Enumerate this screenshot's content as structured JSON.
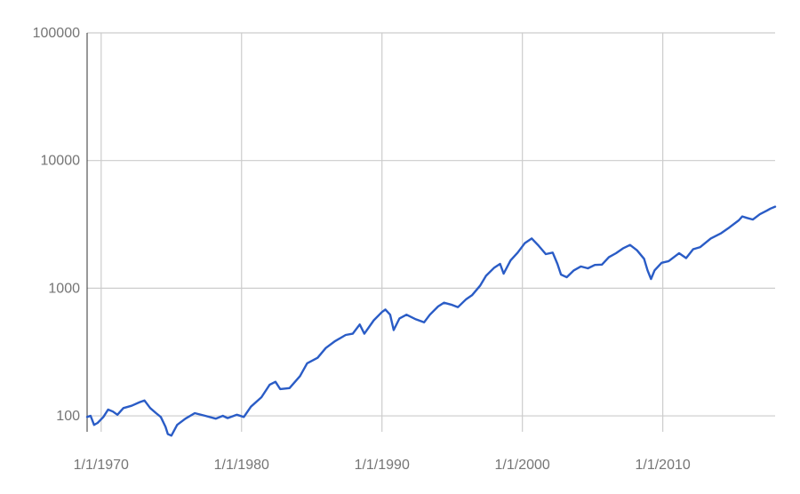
{
  "chart_data": {
    "type": "line",
    "title": "",
    "xlabel": "",
    "ylabel": "",
    "y_scale": "log",
    "ylim": [
      75,
      100000
    ],
    "xlim": [
      "1/1/1969",
      "1/1/2018"
    ],
    "grid": true,
    "legend": "none",
    "x_ticks": [
      {
        "label": "1/1/1970",
        "date": "1970-01-01"
      },
      {
        "label": "1/1/1980",
        "date": "1980-01-01"
      },
      {
        "label": "1/1/1990",
        "date": "1990-01-01"
      },
      {
        "label": "1/1/2000",
        "date": "2000-01-01"
      },
      {
        "label": "1/1/2010",
        "date": "2010-01-01"
      }
    ],
    "y_ticks": [
      {
        "label": "100",
        "value": 100
      },
      {
        "label": "1000",
        "value": 1000
      },
      {
        "label": "10000",
        "value": 10000
      },
      {
        "label": "100000",
        "value": 100000
      }
    ],
    "series": [
      {
        "color": "#2a5cc6",
        "points": [
          [
            "1969-01-01",
            98
          ],
          [
            "1969-04-01",
            100
          ],
          [
            "1969-07-01",
            85
          ],
          [
            "1969-10-01",
            88
          ],
          [
            "1970-03-01",
            98
          ],
          [
            "1970-07-01",
            112
          ],
          [
            "1970-11-01",
            108
          ],
          [
            "1971-03-01",
            102
          ],
          [
            "1971-08-01",
            115
          ],
          [
            "1972-03-01",
            120
          ],
          [
            "1972-10-01",
            128
          ],
          [
            "1973-02-01",
            132
          ],
          [
            "1973-07-01",
            115
          ],
          [
            "1973-12-01",
            105
          ],
          [
            "1974-04-01",
            98
          ],
          [
            "1974-08-01",
            82
          ],
          [
            "1974-10-01",
            72
          ],
          [
            "1975-01-01",
            70
          ],
          [
            "1975-06-01",
            85
          ],
          [
            "1976-01-01",
            95
          ],
          [
            "1976-09-01",
            105
          ],
          [
            "1977-06-01",
            100
          ],
          [
            "1978-03-01",
            95
          ],
          [
            "1978-09-01",
            100
          ],
          [
            "1979-01-01",
            96
          ],
          [
            "1979-09-01",
            102
          ],
          [
            "1980-03-01",
            98
          ],
          [
            "1980-09-01",
            118
          ],
          [
            "1981-06-01",
            140
          ],
          [
            "1982-01-01",
            175
          ],
          [
            "1982-06-01",
            185
          ],
          [
            "1982-10-01",
            162
          ],
          [
            "1983-06-01",
            165
          ],
          [
            "1984-03-01",
            205
          ],
          [
            "1984-09-01",
            258
          ],
          [
            "1985-06-01",
            285
          ],
          [
            "1986-01-01",
            340
          ],
          [
            "1986-09-01",
            385
          ],
          [
            "1987-06-01",
            430
          ],
          [
            "1987-12-01",
            440
          ],
          [
            "1988-06-01",
            520
          ],
          [
            "1988-10-01",
            440
          ],
          [
            "1989-06-01",
            560
          ],
          [
            "1990-01-01",
            650
          ],
          [
            "1990-04-01",
            680
          ],
          [
            "1990-08-01",
            620
          ],
          [
            "1990-11-01",
            470
          ],
          [
            "1991-04-01",
            580
          ],
          [
            "1991-10-01",
            620
          ],
          [
            "1992-06-01",
            570
          ],
          [
            "1993-01-01",
            540
          ],
          [
            "1993-06-01",
            620
          ],
          [
            "1994-01-01",
            720
          ],
          [
            "1994-06-01",
            770
          ],
          [
            "1995-01-01",
            740
          ],
          [
            "1995-06-01",
            710
          ],
          [
            "1996-01-01",
            820
          ],
          [
            "1996-06-01",
            880
          ],
          [
            "1997-01-01",
            1050
          ],
          [
            "1997-06-01",
            1250
          ],
          [
            "1998-01-01",
            1450
          ],
          [
            "1998-06-01",
            1550
          ],
          [
            "1998-09-01",
            1300
          ],
          [
            "1999-03-01",
            1650
          ],
          [
            "1999-09-01",
            1900
          ],
          [
            "2000-03-01",
            2250
          ],
          [
            "2000-09-01",
            2450
          ],
          [
            "2001-03-01",
            2150
          ],
          [
            "2001-09-01",
            1850
          ],
          [
            "2002-03-01",
            1900
          ],
          [
            "2002-07-01",
            1550
          ],
          [
            "2002-10-01",
            1280
          ],
          [
            "2003-03-01",
            1220
          ],
          [
            "2003-09-01",
            1380
          ],
          [
            "2004-03-01",
            1480
          ],
          [
            "2004-09-01",
            1430
          ],
          [
            "2005-03-01",
            1520
          ],
          [
            "2005-09-01",
            1530
          ],
          [
            "2006-03-01",
            1750
          ],
          [
            "2006-09-01",
            1880
          ],
          [
            "2007-03-01",
            2050
          ],
          [
            "2007-09-01",
            2180
          ],
          [
            "2008-03-01",
            1980
          ],
          [
            "2008-09-01",
            1700
          ],
          [
            "2008-12-01",
            1380
          ],
          [
            "2009-03-01",
            1180
          ],
          [
            "2009-06-01",
            1380
          ],
          [
            "2009-12-01",
            1580
          ],
          [
            "2010-06-01",
            1630
          ],
          [
            "2011-03-01",
            1880
          ],
          [
            "2011-09-01",
            1720
          ],
          [
            "2012-03-01",
            2020
          ],
          [
            "2012-09-01",
            2100
          ],
          [
            "2013-06-01",
            2450
          ],
          [
            "2014-03-01",
            2700
          ],
          [
            "2014-09-01",
            2950
          ],
          [
            "2015-06-01",
            3400
          ],
          [
            "2015-09-01",
            3650
          ],
          [
            "2016-01-01",
            3550
          ],
          [
            "2016-06-01",
            3450
          ],
          [
            "2016-12-01",
            3800
          ],
          [
            "2017-06-01",
            4050
          ],
          [
            "2017-09-01",
            4200
          ],
          [
            "2018-01-01",
            4350
          ]
        ]
      }
    ]
  }
}
